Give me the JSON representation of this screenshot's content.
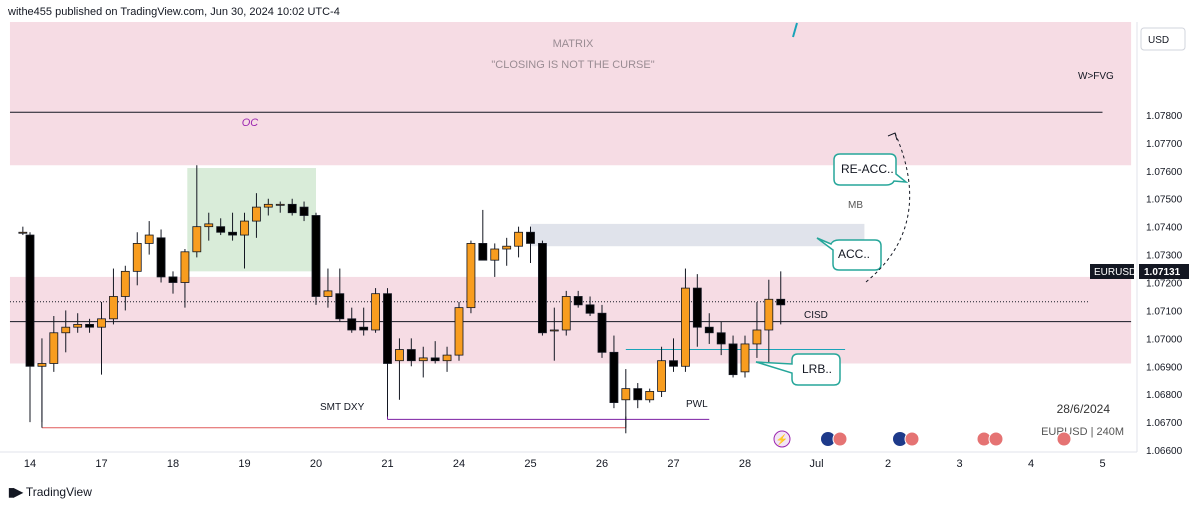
{
  "header": {
    "publish_line": "withe455 published on TradingView.com, Jun 30, 2024 10:02 UTC-4"
  },
  "footer": {
    "brand": "TradingView"
  },
  "colors": {
    "bull": "#f89d1f",
    "bear": "#000000",
    "zone_pink": "#f6dce4",
    "zone_green": "#d9ecd9",
    "zone_grey": "#e0e3eb",
    "callout": "#26a69a",
    "smt_line": "#e05a5a",
    "pwl_line": "#7b1fa2",
    "cisd_line": "#1aa3b8"
  },
  "chart_data": {
    "type": "candlestick",
    "symbol": "EURUSD",
    "timeframe": "240",
    "currency_label": "USD",
    "last_price": "1.07131",
    "price_tag_label": "EURUSD",
    "ylim": [
      1.06593,
      1.08133
    ],
    "price_ticks": [
      "1.07800",
      "1.07700",
      "1.07600",
      "1.07500",
      "1.07400",
      "1.07300",
      "1.07200",
      "1.07100",
      "1.07000",
      "1.06900",
      "1.06800",
      "1.06700",
      "1.06600"
    ],
    "date_ticks": [
      {
        "label": "14",
        "day": 0
      },
      {
        "label": "17",
        "day": 1
      },
      {
        "label": "18",
        "day": 2
      },
      {
        "label": "19",
        "day": 3
      },
      {
        "label": "20",
        "day": 4
      },
      {
        "label": "21",
        "day": 5
      },
      {
        "label": "24",
        "day": 6
      },
      {
        "label": "25",
        "day": 7
      },
      {
        "label": "26",
        "day": 8
      },
      {
        "label": "27",
        "day": 9
      },
      {
        "label": "28",
        "day": 10
      },
      {
        "label": "Jul",
        "day": 11
      },
      {
        "label": "2",
        "day": 12
      },
      {
        "label": "3",
        "day": 13
      },
      {
        "label": "4",
        "day": 14
      },
      {
        "label": "5",
        "day": 15
      }
    ],
    "candles": [
      {
        "t": -0.1,
        "o": 1.0738,
        "h": 1.074,
        "l": 1.0737,
        "c": 1.0738
      },
      {
        "t": 0.0,
        "o": 1.0737,
        "h": 1.0738,
        "l": 1.067,
        "c": 1.069
      },
      {
        "t": 0.167,
        "o": 1.069,
        "h": 1.07,
        "l": 1.067,
        "c": 1.0691
      },
      {
        "t": 0.333,
        "o": 1.0691,
        "h": 1.0708,
        "l": 1.0688,
        "c": 1.0702
      },
      {
        "t": 0.5,
        "o": 1.0702,
        "h": 1.071,
        "l": 1.0695,
        "c": 1.0704
      },
      {
        "t": 0.667,
        "o": 1.0704,
        "h": 1.0709,
        "l": 1.0702,
        "c": 1.0705
      },
      {
        "t": 0.833,
        "o": 1.0705,
        "h": 1.0707,
        "l": 1.0702,
        "c": 1.0704
      },
      {
        "t": 1.0,
        "o": 1.0704,
        "h": 1.0713,
        "l": 1.0687,
        "c": 1.0707
      },
      {
        "t": 1.167,
        "o": 1.0707,
        "h": 1.0725,
        "l": 1.0705,
        "c": 1.0715
      },
      {
        "t": 1.333,
        "o": 1.0715,
        "h": 1.0726,
        "l": 1.071,
        "c": 1.0724
      },
      {
        "t": 1.5,
        "o": 1.0724,
        "h": 1.0738,
        "l": 1.0719,
        "c": 1.0734
      },
      {
        "t": 1.667,
        "o": 1.0734,
        "h": 1.0742,
        "l": 1.073,
        "c": 1.0737
      },
      {
        "t": 1.833,
        "o": 1.0736,
        "h": 1.0739,
        "l": 1.072,
        "c": 1.0722
      },
      {
        "t": 2.0,
        "o": 1.0722,
        "h": 1.0724,
        "l": 1.0716,
        "c": 1.072
      },
      {
        "t": 2.167,
        "o": 1.072,
        "h": 1.0732,
        "l": 1.0711,
        "c": 1.0731
      },
      {
        "t": 2.333,
        "o": 1.0731,
        "h": 1.0762,
        "l": 1.0729,
        "c": 1.074
      },
      {
        "t": 2.5,
        "o": 1.074,
        "h": 1.0745,
        "l": 1.0735,
        "c": 1.0741
      },
      {
        "t": 2.667,
        "o": 1.074,
        "h": 1.0743,
        "l": 1.0737,
        "c": 1.0738
      },
      {
        "t": 2.833,
        "o": 1.0738,
        "h": 1.0745,
        "l": 1.0735,
        "c": 1.0737
      },
      {
        "t": 3.0,
        "o": 1.0737,
        "h": 1.0745,
        "l": 1.0725,
        "c": 1.0742
      },
      {
        "t": 3.167,
        "o": 1.0742,
        "h": 1.0752,
        "l": 1.0736,
        "c": 1.0747
      },
      {
        "t": 3.333,
        "o": 1.0747,
        "h": 1.075,
        "l": 1.0744,
        "c": 1.0748
      },
      {
        "t": 3.5,
        "o": 1.0748,
        "h": 1.0749,
        "l": 1.0745,
        "c": 1.0748
      },
      {
        "t": 3.667,
        "o": 1.0748,
        "h": 1.075,
        "l": 1.0744,
        "c": 1.0745
      },
      {
        "t": 3.833,
        "o": 1.0747,
        "h": 1.0749,
        "l": 1.0742,
        "c": 1.0744
      },
      {
        "t": 4.0,
        "o": 1.0744,
        "h": 1.0745,
        "l": 1.0712,
        "c": 1.0715
      },
      {
        "t": 4.167,
        "o": 1.0715,
        "h": 1.0725,
        "l": 1.0711,
        "c": 1.0717
      },
      {
        "t": 4.333,
        "o": 1.0716,
        "h": 1.0725,
        "l": 1.0706,
        "c": 1.0707
      },
      {
        "t": 4.5,
        "o": 1.0707,
        "h": 1.0711,
        "l": 1.0702,
        "c": 1.0703
      },
      {
        "t": 4.667,
        "o": 1.0704,
        "h": 1.0711,
        "l": 1.0701,
        "c": 1.0703
      },
      {
        "t": 4.833,
        "o": 1.0703,
        "h": 1.0718,
        "l": 1.0702,
        "c": 1.0716
      },
      {
        "t": 5.0,
        "o": 1.0716,
        "h": 1.0718,
        "l": 1.0672,
        "c": 1.0691
      },
      {
        "t": 5.167,
        "o": 1.0692,
        "h": 1.07,
        "l": 1.0678,
        "c": 1.0696
      },
      {
        "t": 5.333,
        "o": 1.0696,
        "h": 1.07,
        "l": 1.069,
        "c": 1.0692
      },
      {
        "t": 5.5,
        "o": 1.0692,
        "h": 1.0697,
        "l": 1.0686,
        "c": 1.0693
      },
      {
        "t": 5.667,
        "o": 1.0693,
        "h": 1.0699,
        "l": 1.0691,
        "c": 1.0692
      },
      {
        "t": 5.833,
        "o": 1.0692,
        "h": 1.0697,
        "l": 1.0688,
        "c": 1.0694
      },
      {
        "t": 6.0,
        "o": 1.0694,
        "h": 1.0713,
        "l": 1.0692,
        "c": 1.0711
      },
      {
        "t": 6.167,
        "o": 1.0711,
        "h": 1.0735,
        "l": 1.0709,
        "c": 1.0734
      },
      {
        "t": 6.333,
        "o": 1.0734,
        "h": 1.0746,
        "l": 1.0728,
        "c": 1.0728
      },
      {
        "t": 6.5,
        "o": 1.0728,
        "h": 1.0734,
        "l": 1.0722,
        "c": 1.0732
      },
      {
        "t": 6.667,
        "o": 1.0732,
        "h": 1.0736,
        "l": 1.0726,
        "c": 1.0733
      },
      {
        "t": 6.833,
        "o": 1.0733,
        "h": 1.074,
        "l": 1.0729,
        "c": 1.0738
      },
      {
        "t": 7.0,
        "o": 1.0738,
        "h": 1.074,
        "l": 1.0727,
        "c": 1.0734
      },
      {
        "t": 7.167,
        "o": 1.0734,
        "h": 1.0735,
        "l": 1.0701,
        "c": 1.0702
      },
      {
        "t": 7.333,
        "o": 1.0703,
        "h": 1.0711,
        "l": 1.0692,
        "c": 1.0703
      },
      {
        "t": 7.5,
        "o": 1.0703,
        "h": 1.0717,
        "l": 1.0701,
        "c": 1.0715
      },
      {
        "t": 7.667,
        "o": 1.0715,
        "h": 1.0717,
        "l": 1.0711,
        "c": 1.0712
      },
      {
        "t": 7.833,
        "o": 1.0712,
        "h": 1.0715,
        "l": 1.0708,
        "c": 1.0709
      },
      {
        "t": 8.0,
        "o": 1.0709,
        "h": 1.0712,
        "l": 1.0693,
        "c": 1.0695
      },
      {
        "t": 8.167,
        "o": 1.0695,
        "h": 1.0701,
        "l": 1.0675,
        "c": 1.0677
      },
      {
        "t": 8.333,
        "o": 1.0678,
        "h": 1.0689,
        "l": 1.0666,
        "c": 1.0682
      },
      {
        "t": 8.5,
        "o": 1.0682,
        "h": 1.0684,
        "l": 1.0675,
        "c": 1.0678
      },
      {
        "t": 8.667,
        "o": 1.0678,
        "h": 1.0682,
        "l": 1.0677,
        "c": 1.0681
      },
      {
        "t": 8.833,
        "o": 1.0681,
        "h": 1.0697,
        "l": 1.0679,
        "c": 1.0692
      },
      {
        "t": 9.0,
        "o": 1.0692,
        "h": 1.07,
        "l": 1.0688,
        "c": 1.069
      },
      {
        "t": 9.167,
        "o": 1.069,
        "h": 1.0725,
        "l": 1.0688,
        "c": 1.0718
      },
      {
        "t": 9.333,
        "o": 1.0718,
        "h": 1.0723,
        "l": 1.0697,
        "c": 1.0704
      },
      {
        "t": 9.5,
        "o": 1.0704,
        "h": 1.0709,
        "l": 1.0698,
        "c": 1.0702
      },
      {
        "t": 9.667,
        "o": 1.0702,
        "h": 1.0706,
        "l": 1.0694,
        "c": 1.0698
      },
      {
        "t": 9.833,
        "o": 1.0698,
        "h": 1.0701,
        "l": 1.0686,
        "c": 1.0687
      },
      {
        "t": 10.0,
        "o": 1.0688,
        "h": 1.0701,
        "l": 1.0686,
        "c": 1.0698
      },
      {
        "t": 10.167,
        "o": 1.0698,
        "h": 1.0713,
        "l": 1.0693,
        "c": 1.0703
      },
      {
        "t": 10.333,
        "o": 1.0703,
        "h": 1.0721,
        "l": 1.0691,
        "c": 1.0714
      },
      {
        "t": 10.5,
        "o": 1.0714,
        "h": 1.0724,
        "l": 1.0705,
        "c": 1.0712
      }
    ],
    "zones": [
      {
        "name": "zone-matrix",
        "kind": "pink",
        "t0": -0.28,
        "t1": 15.4,
        "p0": 1.0762,
        "p1": 1.08133
      },
      {
        "name": "zone-acc",
        "kind": "pink",
        "t0": -0.28,
        "t1": 15.4,
        "p0": 1.0691,
        "p1": 1.0722
      },
      {
        "name": "zone-oc",
        "kind": "green",
        "t0": 2.2,
        "t1": 4.0,
        "p0": 1.0724,
        "p1": 1.0761
      },
      {
        "name": "zone-mb",
        "kind": "grey",
        "t0": 7.0,
        "t1": 11.67,
        "p0": 1.0733,
        "p1": 1.0741
      }
    ],
    "lines": [
      {
        "name": "w-fvg-line",
        "p": 1.0781,
        "t0": -0.28,
        "t1": 15.0,
        "color": "#131722",
        "width": 1
      },
      {
        "name": "midline",
        "p": 1.0706,
        "t0": -0.28,
        "t1": 15.4,
        "color": "#131722",
        "width": 1
      }
    ],
    "annotations": {
      "matrix_title": "MATRIX",
      "matrix_quote": "\"CLOSING IS NOT THE CURSE\"",
      "wfvg": "W>FVG",
      "oc": "OC",
      "mb": "MB",
      "cisd": "CISD",
      "pwl": "PWL",
      "smt_dxy": "SMT DXY",
      "reacc": "RE-ACC..",
      "acc": "ACC..",
      "lrb": "LRB..",
      "date_watermark": "28/6/2024",
      "symbol_watermark": "EURUSD | 240M"
    },
    "smt_line": {
      "t0": 0.167,
      "t1": 8.333,
      "p": 1.0668
    },
    "pwl_line": {
      "t0": 5.0,
      "t1": 9.5,
      "p": 1.0671
    },
    "cisd_line": {
      "t0": 8.333,
      "t1": 11.4,
      "p": 1.0696
    }
  }
}
